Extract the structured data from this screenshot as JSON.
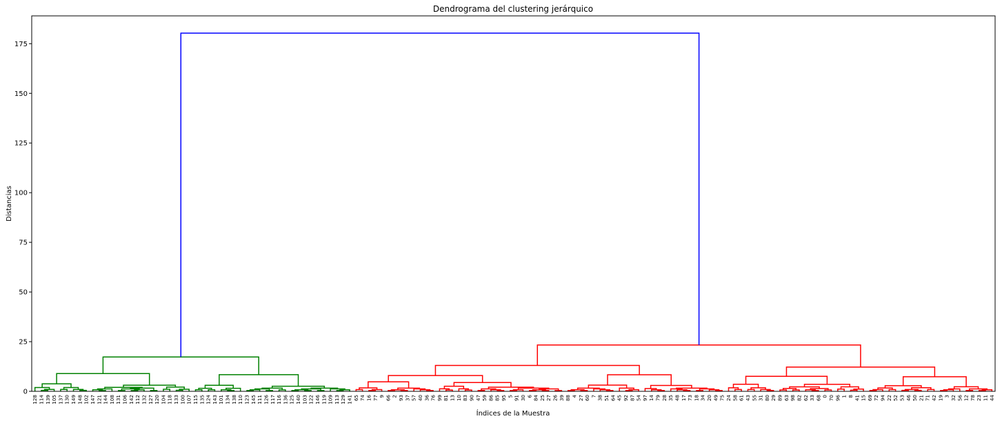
{
  "chart_data": {
    "type": "dendrogram",
    "title": "Dendrograma del clustering jerárquico",
    "xlabel": "Índices de la Muestra",
    "ylabel": "Distancias",
    "ylim": [
      0,
      189
    ],
    "yticks": [
      0,
      25,
      50,
      75,
      100,
      125,
      150,
      175
    ],
    "grid": false,
    "colors": {
      "cluster_green": "#008000",
      "cluster_red": "#ff0000",
      "root": "#0000ff"
    },
    "leaves": [
      "128",
      "114",
      "139",
      "105",
      "137",
      "130",
      "149",
      "148",
      "102",
      "147",
      "121",
      "144",
      "108",
      "131",
      "106",
      "142",
      "112",
      "132",
      "127",
      "120",
      "104",
      "118",
      "133",
      "100",
      "107",
      "115",
      "135",
      "124",
      "143",
      "101",
      "134",
      "138",
      "110",
      "123",
      "145",
      "111",
      "126",
      "117",
      "116",
      "136",
      "125",
      "140",
      "103",
      "122",
      "146",
      "119",
      "109",
      "113",
      "129",
      "141",
      "65",
      "74",
      "16",
      "77",
      "9",
      "66",
      "2",
      "93",
      "37",
      "57",
      "40",
      "36",
      "76",
      "99",
      "81",
      "13",
      "10",
      "83",
      "90",
      "47",
      "59",
      "86",
      "85",
      "95",
      "5",
      "91",
      "30",
      "6",
      "84",
      "25",
      "27",
      "26",
      "39",
      "88",
      "4",
      "27",
      "60",
      "7",
      "38",
      "51",
      "64",
      "45",
      "92",
      "87",
      "54",
      "97",
      "14",
      "79",
      "28",
      "35",
      "48",
      "17",
      "73",
      "18",
      "34",
      "20",
      "49",
      "75",
      "24",
      "58",
      "61",
      "43",
      "55",
      "31",
      "80",
      "29",
      "89",
      "63",
      "98",
      "82",
      "62",
      "33",
      "68",
      "0",
      "70",
      "96",
      "1",
      "8",
      "41",
      "15",
      "69",
      "72",
      "94",
      "22",
      "52",
      "53",
      "46",
      "50",
      "21",
      "71",
      "42",
      "19",
      "3",
      "32",
      "56",
      "12",
      "78",
      "23",
      "11",
      "44"
    ],
    "clusters": [
      {
        "color": "green",
        "leaf_range": [
          0,
          50
        ]
      },
      {
        "color": "red",
        "leaf_range": [
          50,
          150
        ]
      }
    ],
    "root_merge": {
      "height": 180.3,
      "left_height": 17.3,
      "right_height": 23.3
    },
    "major_merges": [
      {
        "color": "green",
        "height": 17.3
      },
      {
        "color": "green",
        "height": 8.8
      },
      {
        "color": "green",
        "height": 8.5
      },
      {
        "color": "green",
        "height": 6.5
      },
      {
        "color": "green",
        "height": 6.2
      },
      {
        "color": "red",
        "height": 23.3
      },
      {
        "color": "red",
        "height": 15.2
      },
      {
        "color": "red",
        "height": 12.5
      },
      {
        "color": "red",
        "height": 10.2
      },
      {
        "color": "red",
        "height": 7.8
      },
      {
        "color": "red",
        "height": 6.8
      },
      {
        "color": "red",
        "height": 6.5
      },
      {
        "color": "red",
        "height": 5.3
      },
      {
        "color": "red",
        "height": 5.0
      }
    ]
  }
}
